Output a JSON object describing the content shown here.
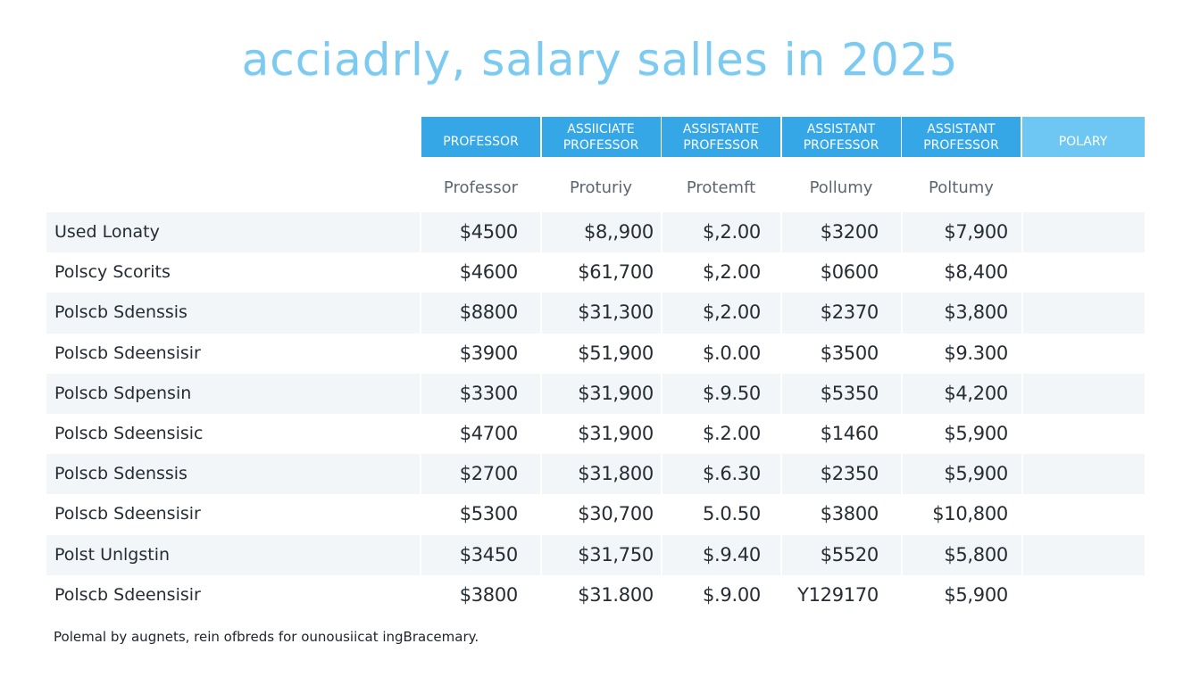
{
  "title": "acciadrly, salary salles in 2025",
  "header": {
    "columns": [
      {
        "line1": "PROFESSOR",
        "line2": ""
      },
      {
        "line1": "ASSIICIATE",
        "line2": "PROFESSOR"
      },
      {
        "line1": "ASSISTANTE",
        "line2": "PROFESSOR"
      },
      {
        "line1": "ASSISTANT",
        "line2": "PROFESSOR"
      },
      {
        "line1": "ASSISTANT",
        "line2": "PROFESSOR"
      },
      {
        "line1": "POLARY",
        "line2": ""
      }
    ],
    "colors": {
      "primary": "#35a7e6",
      "light": "#6ec7f3"
    }
  },
  "subheader": [
    "Professor",
    "Proturiy",
    "Protemft",
    "Pollumy",
    "Poltumy"
  ],
  "footnote": "Polemal by augnets, rein ofbreds for ounousiicat ingBracemary.",
  "chart_data": {
    "type": "table",
    "title": "acciadrly, salary salles in 2025",
    "columns": [
      "PROFESSOR",
      "ASSIICIATE PROFESSOR",
      "ASSISTANTE PROFESSOR",
      "ASSISTANT PROFESSOR",
      "ASSISTANT PROFESSOR",
      "POLARY"
    ],
    "subcolumns": [
      "Professor",
      "Proturiy",
      "Protemft",
      "Pollumy",
      "Poltumy"
    ],
    "rows": [
      {
        "label": "Used Lonaty",
        "values": [
          "$4500",
          "$8,,900",
          "$,2.00",
          "$3200",
          "$7,900"
        ]
      },
      {
        "label": "Polscy Scorits",
        "values": [
          "$4600",
          "$61,700",
          "$,2.00",
          "$0600",
          "$8,400"
        ]
      },
      {
        "label": "Polscb Sdenssis",
        "values": [
          "$8800",
          "$31,300",
          "$,2.00",
          "$2370",
          "$3,800"
        ]
      },
      {
        "label": "Polscb Sdeensisir",
        "values": [
          "$3900",
          "$51,900",
          "$.0.00",
          "$3500",
          "$9.300"
        ]
      },
      {
        "label": "Polscb Sdpensin",
        "values": [
          "$3300",
          "$31,900",
          "$.9.50",
          "$5350",
          "$4,200"
        ]
      },
      {
        "label": "Polscb Sdeensisic",
        "values": [
          "$4700",
          "$31,900",
          "$.2.00",
          "$1460",
          "$5,900"
        ]
      },
      {
        "label": "Polscb Sdenssis",
        "values": [
          "$2700",
          "$31,800",
          "$.6.30",
          "$2350",
          "$5,900"
        ]
      },
      {
        "label": "Polscb Sdeensisir",
        "values": [
          "$5300",
          "$30,700",
          "5.0.50",
          "$3800",
          "$10,800"
        ]
      },
      {
        "label": "Polst Unlgstin",
        "values": [
          "$3450",
          "$31,750",
          "$.9.40",
          "$5520",
          "$5,800"
        ]
      },
      {
        "label": "Polscb Sdeensisir",
        "values": [
          "$3800",
          "$31.800",
          "$.9.00",
          "Y129170",
          "$5,900"
        ]
      }
    ]
  }
}
